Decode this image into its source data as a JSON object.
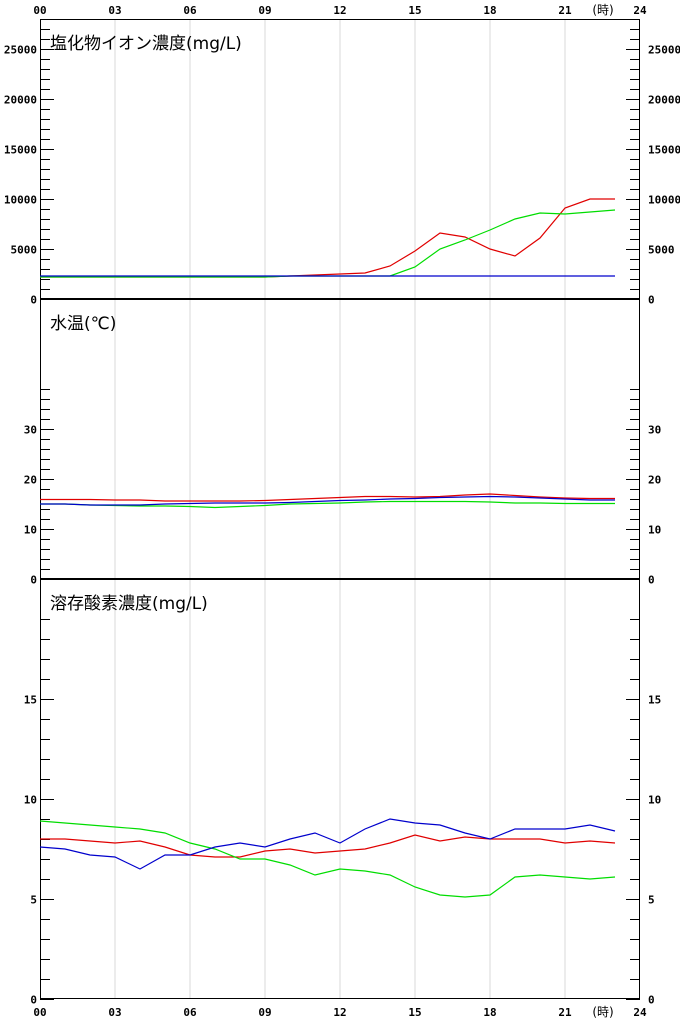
{
  "chart_data": {
    "type": "line",
    "x_ticks": [
      "00",
      "03",
      "06",
      "09",
      "12",
      "15",
      "18",
      "21",
      "24"
    ],
    "x_unit": "(時)",
    "x": [
      0,
      1,
      2,
      3,
      4,
      5,
      6,
      7,
      8,
      9,
      10,
      11,
      12,
      13,
      14,
      15,
      16,
      17,
      18,
      19,
      20,
      21,
      22,
      23
    ],
    "xlim": [
      0,
      24
    ],
    "colors": {
      "red": "#e00000",
      "green": "#00dd00",
      "blue": "#0000cc"
    },
    "panels": [
      {
        "title": "塩化物イオン濃度(mg/L)",
        "ylim": [
          0,
          28000
        ],
        "ticks": [
          0,
          5000,
          10000,
          15000,
          20000,
          25000
        ],
        "tick_labels": [
          "0",
          "5000",
          "10000",
          "15000",
          "20000",
          "25000"
        ],
        "minor_step": 1000,
        "series": [
          {
            "color": "red",
            "values": [
              2200,
              2200,
              2200,
              2200,
              2200,
              2200,
              2200,
              2200,
              2200,
              2200,
              2300,
              2400,
              2500,
              2600,
              3300,
              4800,
              6600,
              6200,
              5000,
              4300,
              6100,
              9100,
              10000,
              10000
            ]
          },
          {
            "color": "green",
            "values": [
              2200,
              2200,
              2200,
              2200,
              2200,
              2200,
              2200,
              2200,
              2200,
              2200,
              2300,
              2300,
              2300,
              2300,
              2300,
              3200,
              5000,
              5900,
              6900,
              8000,
              8600,
              8500,
              8700,
              8900
            ]
          },
          {
            "color": "blue",
            "values": [
              2300,
              2300,
              2300,
              2300,
              2300,
              2300,
              2300,
              2300,
              2300,
              2300,
              2300,
              2300,
              2300,
              2300,
              2300,
              2300,
              2300,
              2300,
              2300,
              2300,
              2300,
              2300,
              2300,
              2300
            ]
          }
        ]
      },
      {
        "title": "水温(℃)",
        "ylim": [
          0,
          56
        ],
        "ticks": [
          0,
          10,
          20,
          30
        ],
        "tick_labels": [
          "0",
          "10",
          "20",
          "30"
        ],
        "minor_range": [
          0,
          38
        ],
        "minor_step": 2,
        "series": [
          {
            "color": "red",
            "values": [
              15.9,
              15.9,
              15.9,
              15.8,
              15.8,
              15.6,
              15.6,
              15.6,
              15.6,
              15.7,
              15.9,
              16.1,
              16.3,
              16.5,
              16.5,
              16.4,
              16.5,
              16.8,
              17.0,
              16.7,
              16.4,
              16.2,
              16.1,
              16.1
            ]
          },
          {
            "color": "green",
            "values": [
              15.0,
              15.0,
              14.8,
              14.7,
              14.6,
              14.6,
              14.5,
              14.3,
              14.5,
              14.7,
              15.0,
              15.1,
              15.2,
              15.4,
              15.5,
              15.5,
              15.5,
              15.5,
              15.4,
              15.2,
              15.2,
              15.1,
              15.1,
              15.1
            ]
          },
          {
            "color": "blue",
            "values": [
              15.0,
              15.0,
              14.8,
              14.8,
              14.8,
              15.0,
              15.1,
              15.2,
              15.2,
              15.2,
              15.3,
              15.5,
              15.7,
              15.8,
              16.0,
              16.1,
              16.3,
              16.4,
              16.5,
              16.4,
              16.2,
              16.0,
              15.8,
              15.8
            ]
          }
        ]
      },
      {
        "title": "溶存酸素濃度(mg/L)",
        "ylim": [
          0,
          21
        ],
        "ticks": [
          0,
          5,
          10,
          15
        ],
        "tick_labels": [
          "0",
          "5",
          "10",
          "15"
        ],
        "minor_range": [
          0,
          19
        ],
        "minor_step": 1,
        "series": [
          {
            "color": "red",
            "values": [
              8.0,
              8.0,
              7.9,
              7.8,
              7.9,
              7.6,
              7.2,
              7.1,
              7.1,
              7.4,
              7.5,
              7.3,
              7.4,
              7.5,
              7.8,
              8.2,
              7.9,
              8.1,
              8.0,
              8.0,
              8.0,
              7.8,
              7.9,
              7.8
            ]
          },
          {
            "color": "green",
            "values": [
              8.9,
              8.8,
              8.7,
              8.6,
              8.5,
              8.3,
              7.8,
              7.5,
              7.0,
              7.0,
              6.7,
              6.2,
              6.5,
              6.4,
              6.2,
              5.6,
              5.2,
              5.1,
              5.2,
              6.1,
              6.2,
              6.1,
              6.0,
              6.1
            ]
          },
          {
            "color": "blue",
            "values": [
              7.6,
              7.5,
              7.2,
              7.1,
              6.5,
              7.2,
              7.2,
              7.6,
              7.8,
              7.6,
              8.0,
              8.3,
              7.8,
              8.5,
              9.0,
              8.8,
              8.7,
              8.3,
              8.0,
              8.5,
              8.5,
              8.5,
              8.7,
              8.4
            ]
          }
        ]
      }
    ]
  }
}
